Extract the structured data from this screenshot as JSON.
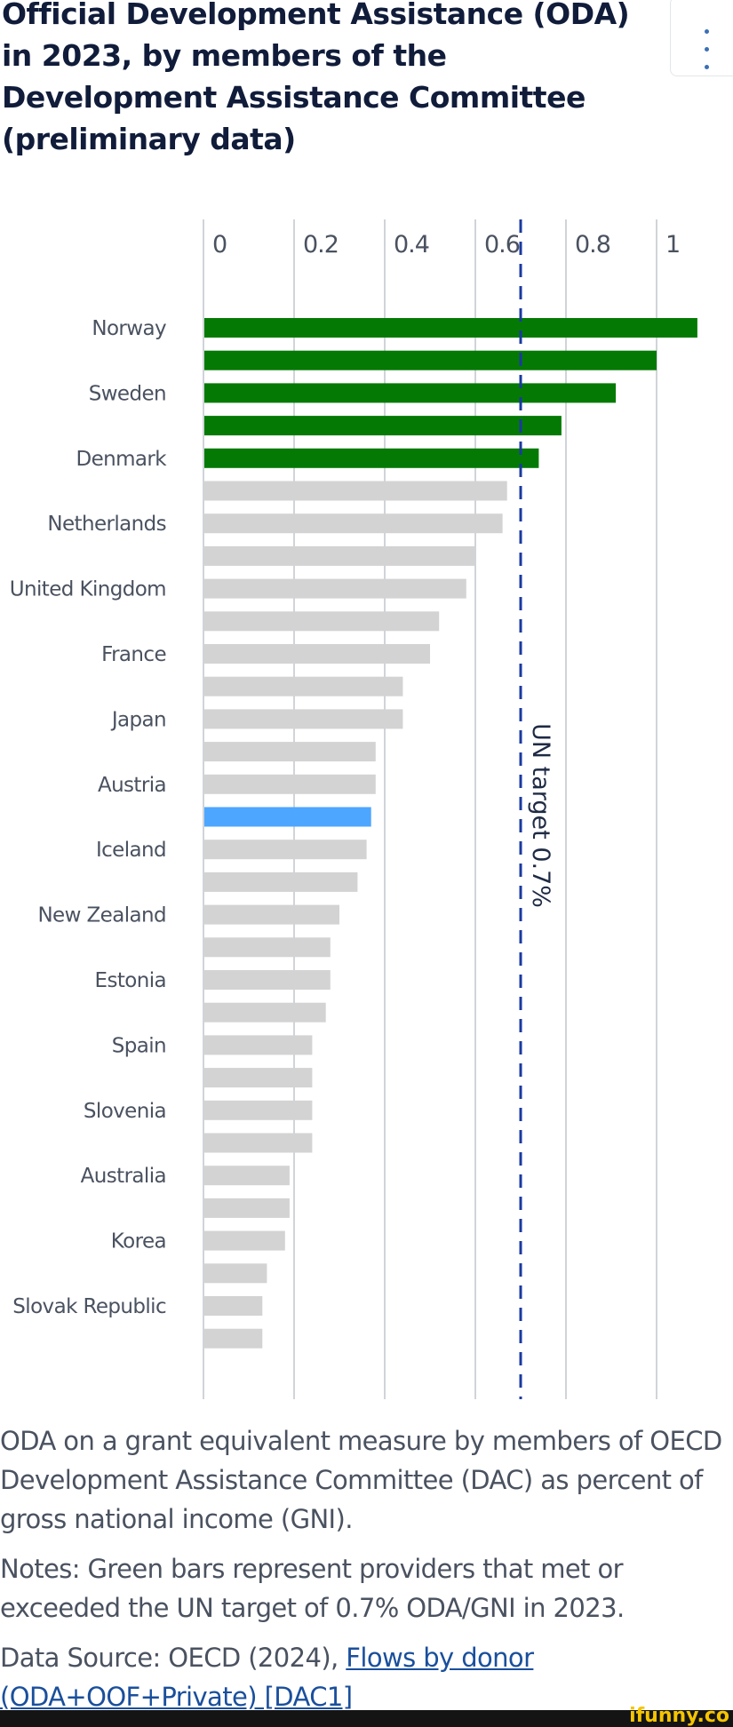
{
  "header": {
    "title": "Official Development Assistance (ODA) in 2023, by members of the Development Assistance Committee (preliminary data)",
    "menu_icon": "more-vertical-icon"
  },
  "chart_data": {
    "type": "bar",
    "orientation": "horizontal",
    "title": "Official Development Assistance (ODA) in 2023, by members of the Development Assistance Committee (preliminary data)",
    "xlabel": "",
    "ylabel": "",
    "xlim": [
      0,
      1.1
    ],
    "xticks": [
      "0",
      "0.2",
      "0.4",
      "0.6",
      "0.8",
      "1"
    ],
    "xtick_values": [
      0,
      0.2,
      0.4,
      0.6,
      0.8,
      1
    ],
    "x_axis_position": "top",
    "grid": true,
    "categories": [
      "Norway",
      "",
      "Sweden",
      "",
      "Denmark",
      "",
      "Netherlands",
      "",
      "United Kingdom",
      "",
      "France",
      "",
      "Japan",
      "",
      "Austria",
      "",
      "Iceland",
      "",
      "New Zealand",
      "",
      "Estonia",
      "",
      "Spain",
      "",
      "Slovenia",
      "",
      "Australia",
      "",
      "Korea",
      "",
      "Slovak Republic",
      ""
    ],
    "values": [
      1.09,
      1.0,
      0.91,
      0.79,
      0.74,
      0.67,
      0.66,
      0.6,
      0.58,
      0.52,
      0.5,
      0.44,
      0.44,
      0.38,
      0.38,
      0.37,
      0.36,
      0.34,
      0.3,
      0.28,
      0.28,
      0.27,
      0.24,
      0.24,
      0.24,
      0.24,
      0.19,
      0.19,
      0.18,
      0.14,
      0.13,
      0.13
    ],
    "bar_colors": [
      "green",
      "green",
      "green",
      "green",
      "green",
      "grey",
      "grey",
      "grey",
      "grey",
      "grey",
      "grey",
      "grey",
      "grey",
      "grey",
      "grey",
      "blue",
      "grey",
      "grey",
      "grey",
      "grey",
      "grey",
      "grey",
      "grey",
      "grey",
      "grey",
      "grey",
      "grey",
      "grey",
      "grey",
      "grey",
      "grey",
      "grey"
    ],
    "colors": {
      "green": "#047a04",
      "grey": "#d3d3d3",
      "blue": "#4da6ff",
      "target": "#1a3aa0",
      "grid": "#d0d4d9"
    },
    "reference_line": {
      "value": 0.7,
      "label": "UN target 0.7%",
      "style": "dashed"
    }
  },
  "caption": {
    "description": "ODA on a grant equivalent measure by members of OECD Development Assistance Committee (DAC) as percent of gross national income (GNI).",
    "notes": "Notes: Green bars represent providers that met or exceeded the UN target of 0.7% ODA/GNI in 2023.",
    "source_prefix": "Data Source: OECD (2024), ",
    "source_link": "Flows by donor (ODA+OOF+Private) [DAC1]"
  },
  "footer": {
    "watermark": "ifunny.co"
  }
}
